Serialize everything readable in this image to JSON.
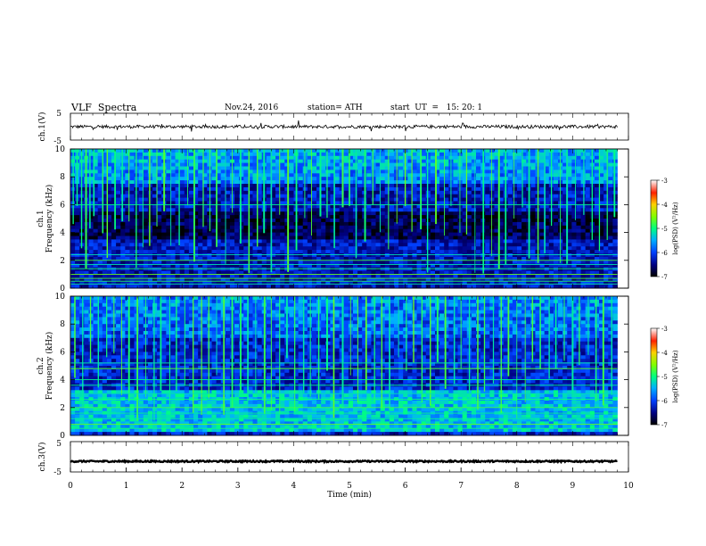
{
  "header": {
    "title": "VLF  Spectra",
    "date": "Nov.24, 2016",
    "station": "station= ATH",
    "start": "start  UT  =   15: 20: 1"
  },
  "colors": {
    "spec_low": "#000040",
    "spec_mid": "#1030d0",
    "spec_high": "#00d000",
    "spec_max": "#ff0000",
    "line": "#000000"
  },
  "chart_data": [
    {
      "type": "line",
      "panel": "ch.1(V)",
      "ylabel": "ch.1(V)",
      "ylim": [
        -5,
        5
      ],
      "yticks": [
        "5",
        "-5"
      ],
      "baseline": 0,
      "noise_amplitude": 0.6,
      "xlim": [
        0,
        10
      ],
      "data_end_min": 9.8
    },
    {
      "type": "heatmap",
      "panel": "ch.1 spectrogram",
      "ylabel": "ch.1",
      "ylabel2": "Frequency  (kHz)",
      "ylim": [
        0,
        10
      ],
      "yticks": [
        "10",
        "8",
        "6",
        "4",
        "2",
        "0"
      ],
      "xlim": [
        0,
        10
      ],
      "data_end_min": 9.8,
      "background_log_psd": -6.3,
      "upper_band_log_psd": -5.7,
      "upper_band_khz": [
        7.5,
        10
      ],
      "transmitter_lines_khz": [
        0.3,
        0.5,
        0.7,
        1.0,
        1.4,
        1.7,
        2.0,
        2.4,
        6.0
      ],
      "sferics_min": [
        0.05,
        0.12,
        0.2,
        0.28,
        0.35,
        0.42,
        0.58,
        0.66,
        0.8,
        0.93,
        1.05,
        1.18,
        1.3,
        1.42,
        1.55,
        1.68,
        1.8,
        1.95,
        2.1,
        2.22,
        2.38,
        2.5,
        2.62,
        2.78,
        2.9,
        3.05,
        3.2,
        3.35,
        3.47,
        3.6,
        3.75,
        3.9,
        4.05,
        4.2,
        4.32,
        4.48,
        4.6,
        4.73,
        4.88,
        5.0,
        5.12,
        5.28,
        5.42,
        5.55,
        5.7,
        5.85,
        6.0,
        6.12,
        6.28,
        6.4,
        6.55,
        6.7,
        6.82,
        6.98,
        7.1,
        7.25,
        7.4,
        7.55,
        7.68,
        7.8,
        7.95,
        8.1,
        8.22,
        8.38,
        8.5,
        8.62,
        8.78,
        8.9,
        9.05,
        9.2,
        9.35,
        9.48,
        9.62,
        9.75
      ],
      "colorbar": {
        "label": "log(PSD) (V²/Hz)",
        "range": [
          -7,
          -3
        ],
        "ticks": [
          "-3",
          "-4",
          "-5",
          "-6",
          "-7"
        ]
      }
    },
    {
      "type": "heatmap",
      "panel": "ch.2 spectrogram",
      "ylabel": "ch.2",
      "ylabel2": "Frequency  (kHz)",
      "ylim": [
        0,
        10
      ],
      "yticks": [
        "10",
        "8",
        "6",
        "4",
        "2",
        "0"
      ],
      "xlim": [
        0,
        10
      ],
      "data_end_min": 9.8,
      "background_log_psd": -6.2,
      "upper_band_log_psd": -5.9,
      "upper_band_khz": [
        7.0,
        10
      ],
      "lower_band_log_psd": -5.4,
      "lower_band_khz": [
        0.3,
        3.2
      ],
      "transmitter_lines_khz": [
        0.5,
        0.8,
        1.2,
        1.6,
        2.0,
        2.6,
        3.0,
        3.6,
        4.0,
        4.8,
        5.2
      ],
      "sferics_min": [
        0.08,
        0.22,
        0.36,
        0.5,
        0.65,
        0.78,
        0.92,
        1.05,
        1.2,
        1.35,
        1.5,
        1.62,
        1.78,
        1.9,
        2.05,
        2.2,
        2.35,
        2.48,
        2.62,
        2.75,
        2.9,
        3.05,
        3.18,
        3.32,
        3.48,
        3.6,
        3.75,
        3.88,
        4.02,
        4.18,
        4.3,
        4.45,
        4.6,
        4.72,
        4.88,
        5.02,
        5.15,
        5.3,
        5.45,
        5.58,
        5.72,
        5.88,
        6.02,
        6.15,
        6.3,
        6.45,
        6.58,
        6.72,
        6.88,
        7.0,
        7.15,
        7.3,
        7.42,
        7.58,
        7.72,
        7.85,
        8.0,
        8.15,
        8.28,
        8.42,
        8.58,
        8.7,
        8.85,
        9.0,
        9.12,
        9.28,
        9.42,
        9.55,
        9.7
      ],
      "colorbar": {
        "label": "log(PSD) (V²/Hz)",
        "range": [
          -7,
          -3
        ],
        "ticks": [
          "-3",
          "-4",
          "-5",
          "-6",
          "-7"
        ]
      }
    },
    {
      "type": "line",
      "panel": "ch.3(V)",
      "ylabel": "ch.3(V)",
      "ylim": [
        -5,
        5
      ],
      "yticks": [
        "5",
        "-5"
      ],
      "baseline": -1.5,
      "noise_amplitude": 0.25,
      "xlim": [
        0,
        10
      ],
      "data_end_min": 9.8,
      "xticks": [
        "0",
        "1",
        "2",
        "3",
        "4",
        "5",
        "6",
        "7",
        "8",
        "9",
        "10"
      ],
      "xlabel": "Time  (min)"
    }
  ]
}
